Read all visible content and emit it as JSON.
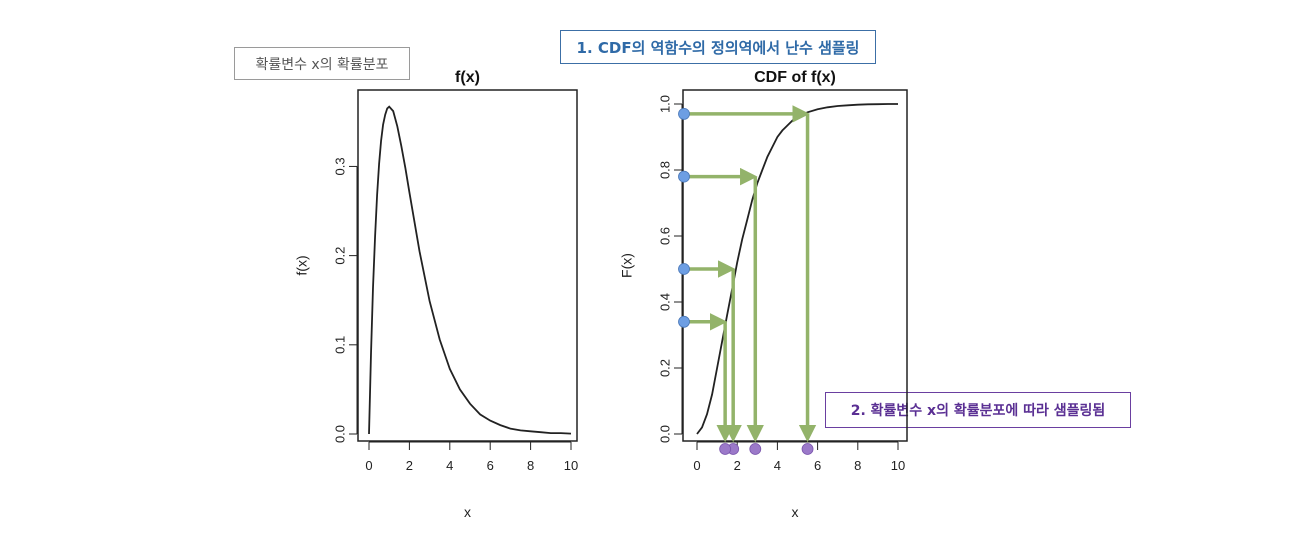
{
  "labels": {
    "distribution": "확률변수 x의 확률분포",
    "step1": "1. CDF의 역함수의 정의역에서 난수 샘플링",
    "step2": "2. 확률변수 x의  확률분포에 따라 샘플링됨"
  },
  "colors": {
    "curve": "#222222",
    "arrow": "#93b36a",
    "uniform_point": "#6d9ee3",
    "sample_point": "#9b79c9",
    "step1_text": "#2f6aa7",
    "step2_text": "#5a2f93"
  },
  "chart_data": [
    {
      "type": "line",
      "title": "f(x)",
      "xlabel": "x",
      "ylabel": "f(x)",
      "xlim": [
        0,
        10
      ],
      "ylim": [
        0,
        0.37
      ],
      "xticks": [
        "0",
        "2",
        "4",
        "6",
        "8",
        "10"
      ],
      "yticks": [
        "0.0",
        "0.1",
        "0.2",
        "0.3"
      ],
      "series": [
        {
          "x": [
            0,
            0.1,
            0.2,
            0.3,
            0.4,
            0.5,
            0.6,
            0.7,
            0.8,
            0.9,
            1.0,
            1.2,
            1.4,
            1.6,
            1.8,
            2.0,
            2.5,
            3.0,
            3.5,
            4.0,
            4.5,
            5.0,
            5.5,
            6.0,
            6.5,
            7.0,
            7.5,
            8.0,
            8.5,
            9.0,
            9.5,
            10.0
          ],
          "y": [
            0.0,
            0.09,
            0.164,
            0.222,
            0.268,
            0.303,
            0.329,
            0.347,
            0.358,
            0.365,
            0.367,
            0.362,
            0.345,
            0.323,
            0.298,
            0.271,
            0.205,
            0.149,
            0.106,
            0.073,
            0.05,
            0.034,
            0.022,
            0.015,
            0.01,
            0.006,
            0.004,
            0.003,
            0.002,
            0.001,
            0.001,
            0.0005
          ]
        }
      ]
    },
    {
      "type": "line",
      "title": "CDF of f(x)",
      "xlabel": "x",
      "ylabel": "F(x)",
      "xlim": [
        0,
        10
      ],
      "ylim": [
        0,
        1
      ],
      "xticks": [
        "0",
        "2",
        "4",
        "6",
        "8",
        "10"
      ],
      "yticks": [
        "0.0",
        "0.2",
        "0.4",
        "0.6",
        "0.8",
        "1.0"
      ],
      "series": [
        {
          "x": [
            0,
            0.25,
            0.5,
            0.75,
            1.0,
            1.25,
            1.5,
            1.75,
            2.0,
            2.25,
            2.5,
            2.75,
            3.0,
            3.25,
            3.5,
            3.75,
            4.0,
            4.25,
            4.5,
            4.75,
            5.0,
            5.25,
            5.5,
            6.0,
            6.5,
            7.0,
            7.5,
            8.0,
            8.5,
            9.0,
            9.5,
            10.0
          ],
          "y": [
            0.0,
            0.02,
            0.06,
            0.12,
            0.2,
            0.28,
            0.36,
            0.44,
            0.52,
            0.59,
            0.65,
            0.71,
            0.76,
            0.8,
            0.84,
            0.87,
            0.9,
            0.92,
            0.935,
            0.95,
            0.96,
            0.968,
            0.975,
            0.984,
            0.99,
            0.994,
            0.996,
            0.998,
            0.999,
            0.9995,
            1.0,
            1.0
          ]
        }
      ],
      "sampling": [
        {
          "u": 0.97,
          "x": 5.5
        },
        {
          "u": 0.78,
          "x": 2.9
        },
        {
          "u": 0.5,
          "x": 1.8
        },
        {
          "u": 0.34,
          "x": 1.4
        }
      ]
    }
  ]
}
